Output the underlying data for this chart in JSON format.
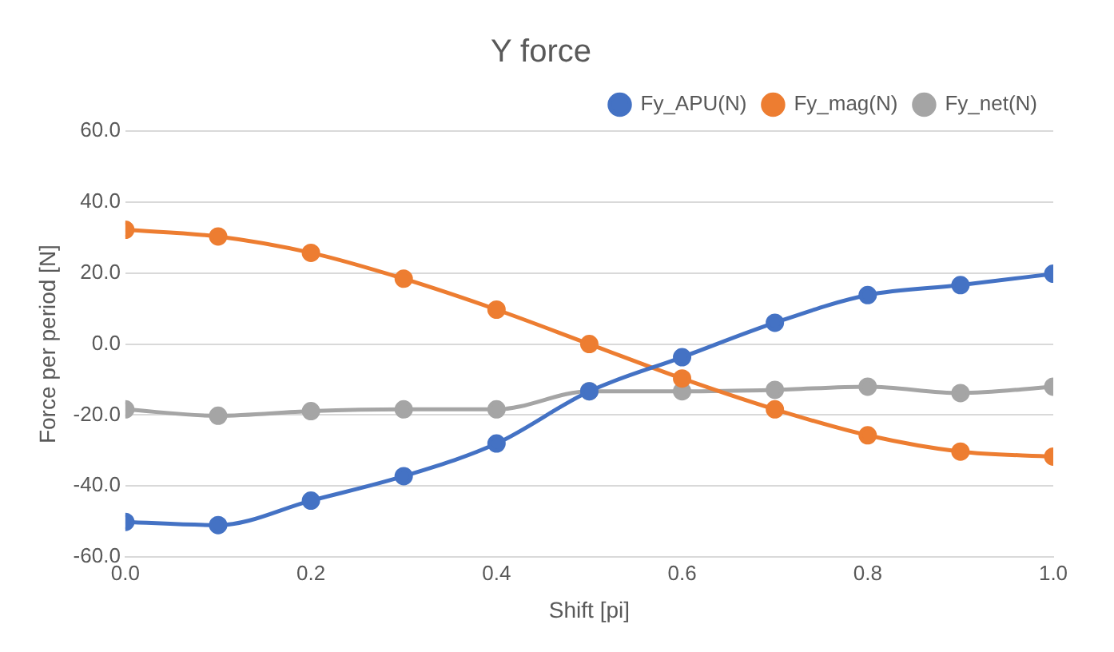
{
  "chart_data": {
    "type": "line",
    "title": "Y force",
    "xlabel": "Shift [pi]",
    "ylabel": "Force per period [N]",
    "x": [
      0,
      0.1,
      0.2,
      0.3,
      0.4,
      0.5,
      0.6,
      0.7,
      0.8,
      0.9,
      1.0
    ],
    "series": [
      {
        "name": "Fy_APU(N)",
        "color": "#4472c4",
        "values": [
          -50.1,
          -51,
          -44.1,
          -37.2,
          -28,
          -13.3,
          -3.7,
          6,
          13.8,
          16.6,
          19.8
        ]
      },
      {
        "name": "Fy_mag(N)",
        "color": "#ed7d31",
        "values": [
          32.2,
          30.3,
          25.7,
          18.4,
          9.7,
          0,
          -9.7,
          -18.4,
          -25.7,
          -30.3,
          -31.7
        ]
      },
      {
        "name": "Fy_net(N)",
        "color": "#a5a5a5",
        "values": [
          -18.4,
          -20.2,
          -18.9,
          -18.4,
          -18.4,
          -13.3,
          -13.3,
          -12.9,
          -12,
          -13.8,
          -12
        ]
      }
    ],
    "xlim": [
      0,
      1
    ],
    "xticks": [
      {
        "value": 0,
        "label": "0.0"
      },
      {
        "value": 0.2,
        "label": "0.2"
      },
      {
        "value": 0.4,
        "label": "0.4"
      },
      {
        "value": 0.6,
        "label": "0.6"
      },
      {
        "value": 0.8,
        "label": "0.8"
      },
      {
        "value": 1,
        "label": "1.0"
      }
    ],
    "ylim": [
      -60,
      60
    ],
    "yticks": [
      {
        "value": -60,
        "label": "-60.0"
      },
      {
        "value": -40,
        "label": "-40.0"
      },
      {
        "value": -20,
        "label": "-20.0"
      },
      {
        "value": 0,
        "label": "0.0"
      },
      {
        "value": 20,
        "label": "20.0"
      },
      {
        "value": 40,
        "label": "40.0"
      },
      {
        "value": 60,
        "label": "60.0"
      }
    ],
    "grid": "y",
    "legend": "top right",
    "marker": "circle",
    "line_style": "solid"
  }
}
